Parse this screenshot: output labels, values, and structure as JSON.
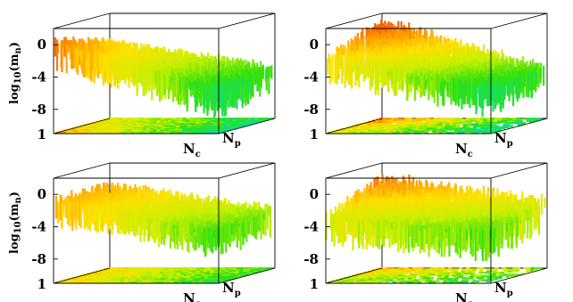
{
  "chart_data": [
    {
      "type": "surface3d",
      "panel": "top-left",
      "ylabel": "log",
      "ylabel_sub": "10",
      "ylabel_arg": "(m",
      "ylabel_arg_sub": "n",
      "ylabel_close": ")",
      "ytick_labels": [
        "0",
        "-4",
        "-8"
      ],
      "zero_label": "1",
      "x_axis": "N",
      "x_axis_sub": "c",
      "y_axis": "N",
      "y_axis_sub": "p",
      "ylim": [
        -11,
        2
      ],
      "corner_values": {
        "front_left": 0,
        "back_left": -2,
        "front_right": -6,
        "back_right": -5
      },
      "noise": 2.2,
      "floor_coverage": 1.0
    },
    {
      "type": "surface3d",
      "panel": "top-right",
      "ytick_labels": [
        "0",
        "-4",
        "-8"
      ],
      "zero_label": "1",
      "side_label": "1",
      "x_axis": "N",
      "x_axis_sub": "c",
      "y_axis": "N",
      "y_axis_sub": "p",
      "ylim": [
        -11,
        2
      ],
      "corner_values": {
        "front_left": -2,
        "back_left": 1,
        "front_right": -6,
        "back_right": -5
      },
      "noise": 2.0,
      "floor_coverage": 0.65
    },
    {
      "type": "surface3d",
      "panel": "bottom-left",
      "ylabel": "log",
      "ylabel_sub": "10",
      "ylabel_arg": "(m",
      "ylabel_arg_sub": "n",
      "ylabel_close": ")",
      "ytick_labels": [
        "0",
        "-4",
        "-8"
      ],
      "zero_label": "1",
      "x_axis": "N",
      "x_axis_sub": "c",
      "y_axis": "N",
      "y_axis_sub": "p",
      "ylim": [
        -11,
        2
      ],
      "corner_values": {
        "front_left": -1,
        "back_left": -1,
        "front_right": -5,
        "back_right": -4
      },
      "noise": 2.0,
      "floor_coverage": 1.0
    },
    {
      "type": "surface3d",
      "panel": "bottom-right",
      "ytick_labels": [
        "0",
        "-4",
        "-8"
      ],
      "zero_label": "1",
      "side_label": "1",
      "x_axis": "N",
      "x_axis_sub": "c",
      "y_axis": "N",
      "y_axis_sub": "p",
      "ylim": [
        -11,
        2
      ],
      "corner_values": {
        "front_left": -3,
        "back_left": 0,
        "front_right": -5,
        "back_right": -3
      },
      "noise": 2.4,
      "floor_coverage": 0.45
    }
  ],
  "colors": {
    "scale": [
      "#1010c8",
      "#1e64ff",
      "#00b4ff",
      "#00e0a0",
      "#30e010",
      "#c8f000",
      "#ffe000",
      "#ff8c00",
      "#ff1e00"
    ],
    "frame": "#000000"
  }
}
